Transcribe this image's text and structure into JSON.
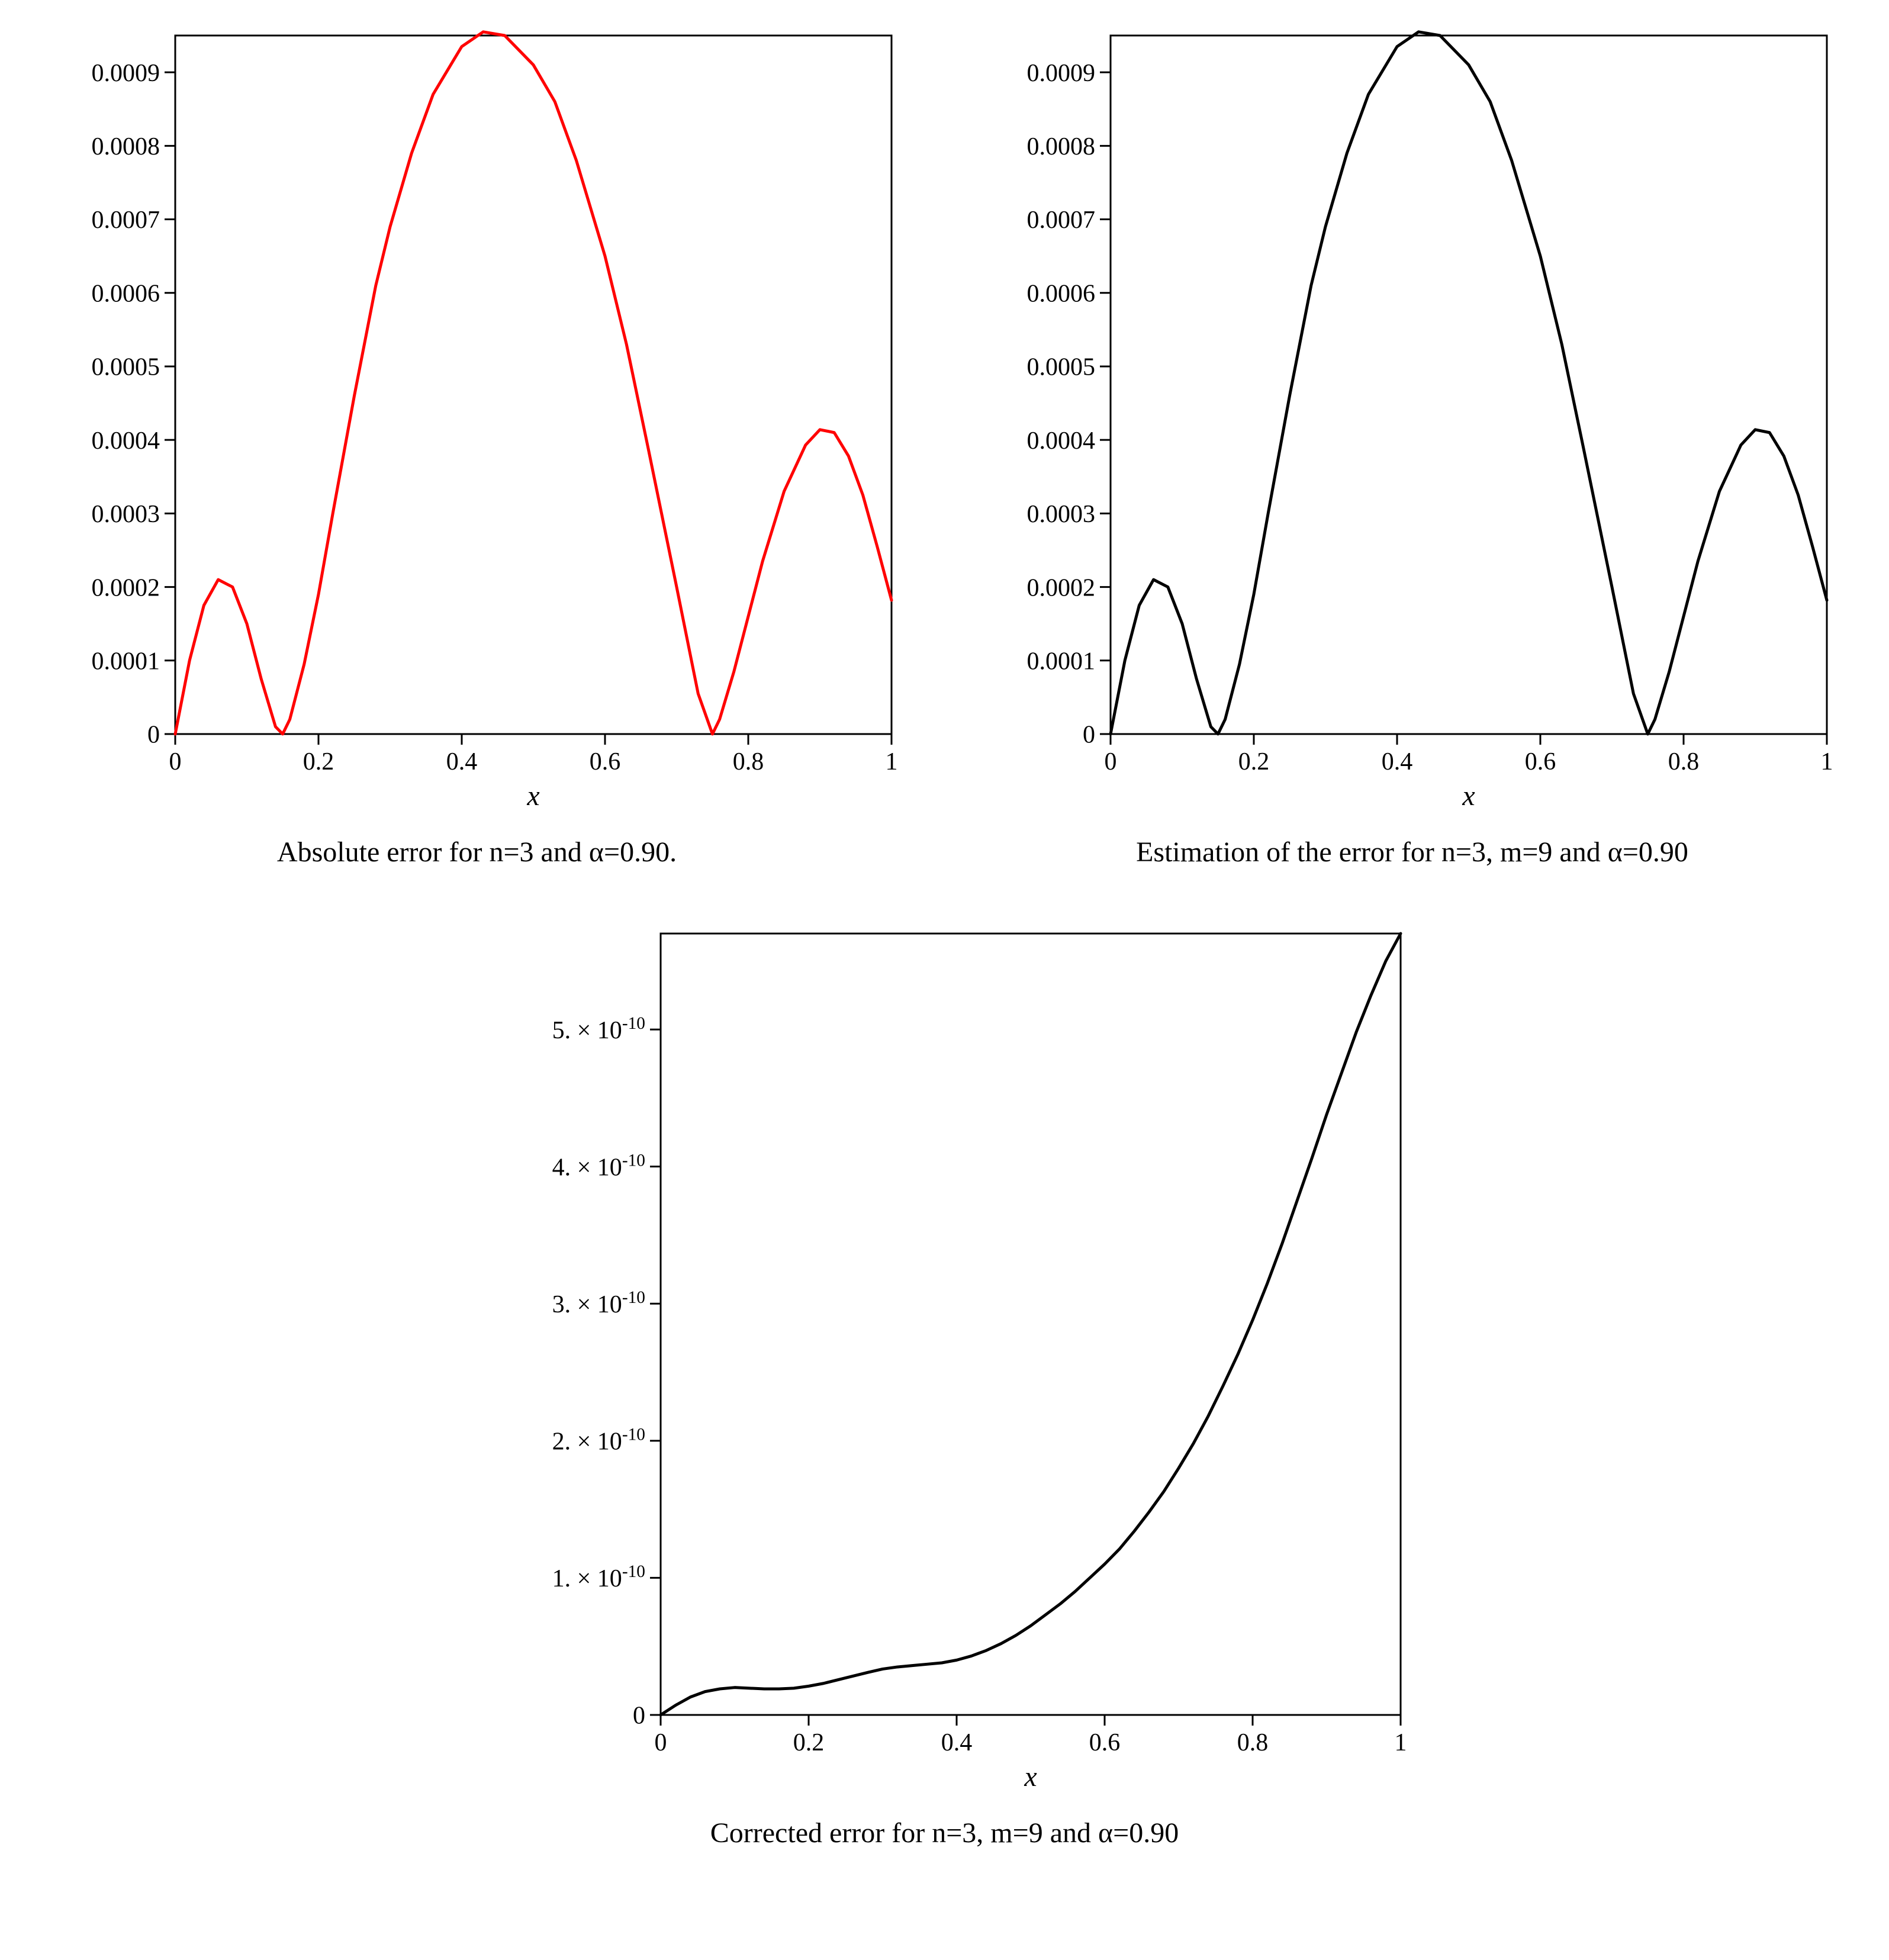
{
  "chart1": {
    "type": "line",
    "caption": "Absolute error for n=3 and α=0.90.",
    "xlabel": "x",
    "xlim": [
      0,
      1
    ],
    "ylim": [
      0,
      0.00095
    ],
    "xtick_step": 0.2,
    "yticks": [
      0,
      0.0001,
      0.0002,
      0.0003,
      0.0004,
      0.0005,
      0.0006,
      0.0007,
      0.0008,
      0.0009
    ],
    "line_color": "#ff0000",
    "line_width": 5,
    "axis_color": "#000000",
    "background_color": "#ffffff",
    "label_fontsize": 48,
    "tick_fontsize": 42,
    "points": [
      [
        0.0,
        0.0
      ],
      [
        0.02,
        0.0001
      ],
      [
        0.04,
        0.000175
      ],
      [
        0.06,
        0.00021
      ],
      [
        0.08,
        0.0002
      ],
      [
        0.1,
        0.00015
      ],
      [
        0.12,
        7.5e-05
      ],
      [
        0.14,
        1e-05
      ],
      [
        0.15,
        0.0
      ],
      [
        0.16,
        2e-05
      ],
      [
        0.18,
        9.5e-05
      ],
      [
        0.2,
        0.00019
      ],
      [
        0.22,
        0.0003
      ],
      [
        0.25,
        0.00046
      ],
      [
        0.28,
        0.00061
      ],
      [
        0.3,
        0.00069
      ],
      [
        0.33,
        0.00079
      ],
      [
        0.36,
        0.00087
      ],
      [
        0.4,
        0.000935
      ],
      [
        0.43,
        0.000955
      ],
      [
        0.46,
        0.00095
      ],
      [
        0.5,
        0.00091
      ],
      [
        0.53,
        0.00086
      ],
      [
        0.56,
        0.00078
      ],
      [
        0.6,
        0.00065
      ],
      [
        0.63,
        0.00053
      ],
      [
        0.66,
        0.00039
      ],
      [
        0.7,
        0.0002
      ],
      [
        0.73,
        5.5e-05
      ],
      [
        0.75,
        0.0
      ],
      [
        0.76,
        2e-05
      ],
      [
        0.78,
        8.5e-05
      ],
      [
        0.8,
        0.00016
      ],
      [
        0.82,
        0.000235
      ],
      [
        0.85,
        0.00033
      ],
      [
        0.88,
        0.000393
      ],
      [
        0.9,
        0.000414
      ],
      [
        0.92,
        0.00041
      ],
      [
        0.94,
        0.000378
      ],
      [
        0.96,
        0.000325
      ],
      [
        0.98,
        0.000255
      ],
      [
        1.0,
        0.000182
      ]
    ]
  },
  "chart2": {
    "type": "line",
    "caption": "Estimation of the error for n=3, m=9 and α=0.90",
    "xlabel": "x",
    "xlim": [
      0,
      1
    ],
    "ylim": [
      0,
      0.00095
    ],
    "xtick_step": 0.2,
    "yticks": [
      0,
      0.0001,
      0.0002,
      0.0003,
      0.0004,
      0.0005,
      0.0006,
      0.0007,
      0.0008,
      0.0009
    ],
    "line_color": "#000000",
    "line_width": 5,
    "axis_color": "#000000",
    "background_color": "#ffffff",
    "label_fontsize": 48,
    "tick_fontsize": 42,
    "points": [
      [
        0.0,
        0.0
      ],
      [
        0.02,
        0.0001
      ],
      [
        0.04,
        0.000175
      ],
      [
        0.06,
        0.00021
      ],
      [
        0.08,
        0.0002
      ],
      [
        0.1,
        0.00015
      ],
      [
        0.12,
        7.5e-05
      ],
      [
        0.14,
        1e-05
      ],
      [
        0.15,
        0.0
      ],
      [
        0.16,
        2e-05
      ],
      [
        0.18,
        9.5e-05
      ],
      [
        0.2,
        0.00019
      ],
      [
        0.22,
        0.0003
      ],
      [
        0.25,
        0.00046
      ],
      [
        0.28,
        0.00061
      ],
      [
        0.3,
        0.00069
      ],
      [
        0.33,
        0.00079
      ],
      [
        0.36,
        0.00087
      ],
      [
        0.4,
        0.000935
      ],
      [
        0.43,
        0.000955
      ],
      [
        0.46,
        0.00095
      ],
      [
        0.5,
        0.00091
      ],
      [
        0.53,
        0.00086
      ],
      [
        0.56,
        0.00078
      ],
      [
        0.6,
        0.00065
      ],
      [
        0.63,
        0.00053
      ],
      [
        0.66,
        0.00039
      ],
      [
        0.7,
        0.0002
      ],
      [
        0.73,
        5.5e-05
      ],
      [
        0.75,
        0.0
      ],
      [
        0.76,
        2e-05
      ],
      [
        0.78,
        8.5e-05
      ],
      [
        0.8,
        0.00016
      ],
      [
        0.82,
        0.000235
      ],
      [
        0.85,
        0.00033
      ],
      [
        0.88,
        0.000393
      ],
      [
        0.9,
        0.000414
      ],
      [
        0.92,
        0.00041
      ],
      [
        0.94,
        0.000378
      ],
      [
        0.96,
        0.000325
      ],
      [
        0.98,
        0.000255
      ],
      [
        1.0,
        0.000182
      ]
    ]
  },
  "chart3": {
    "type": "line",
    "caption": "Corrected error for n=3, m=9 and α=0.90",
    "xlabel": "x",
    "xlim": [
      0,
      1
    ],
    "ylim": [
      0,
      5.7e-10
    ],
    "xtick_step": 0.2,
    "yticks_sci": [
      {
        "val": 0,
        "label": "0"
      },
      {
        "val": 1e-10,
        "label_mantissa": "1.",
        "label_exp": "-10"
      },
      {
        "val": 2e-10,
        "label_mantissa": "2.",
        "label_exp": "-10"
      },
      {
        "val": 3e-10,
        "label_mantissa": "3.",
        "label_exp": "-10"
      },
      {
        "val": 4e-10,
        "label_mantissa": "4.",
        "label_exp": "-10"
      },
      {
        "val": 5e-10,
        "label_mantissa": "5.",
        "label_exp": "-10"
      }
    ],
    "line_color": "#000000",
    "line_width": 5,
    "axis_color": "#000000",
    "background_color": "#ffffff",
    "label_fontsize": 48,
    "tick_fontsize": 42,
    "points": [
      [
        0.0,
        0.0
      ],
      [
        0.02,
        7e-12
      ],
      [
        0.04,
        1.3e-11
      ],
      [
        0.06,
        1.7e-11
      ],
      [
        0.08,
        1.9e-11
      ],
      [
        0.1,
        2e-11
      ],
      [
        0.12,
        1.95e-11
      ],
      [
        0.14,
        1.9e-11
      ],
      [
        0.16,
        1.9e-11
      ],
      [
        0.18,
        1.95e-11
      ],
      [
        0.2,
        2.1e-11
      ],
      [
        0.22,
        2.3e-11
      ],
      [
        0.25,
        2.7e-11
      ],
      [
        0.28,
        3.1e-11
      ],
      [
        0.3,
        3.35e-11
      ],
      [
        0.32,
        3.5e-11
      ],
      [
        0.34,
        3.6e-11
      ],
      [
        0.36,
        3.7e-11
      ],
      [
        0.38,
        3.8e-11
      ],
      [
        0.4,
        4e-11
      ],
      [
        0.42,
        4.3e-11
      ],
      [
        0.44,
        4.7e-11
      ],
      [
        0.46,
        5.2e-11
      ],
      [
        0.48,
        5.8e-11
      ],
      [
        0.5,
        6.5e-11
      ],
      [
        0.52,
        7.3e-11
      ],
      [
        0.54,
        8.1e-11
      ],
      [
        0.56,
        9e-11
      ],
      [
        0.58,
        1e-10
      ],
      [
        0.6,
        1.1e-10
      ],
      [
        0.62,
        1.21e-10
      ],
      [
        0.64,
        1.34e-10
      ],
      [
        0.66,
        1.48e-10
      ],
      [
        0.68,
        1.63e-10
      ],
      [
        0.7,
        1.8e-10
      ],
      [
        0.72,
        1.98e-10
      ],
      [
        0.74,
        2.18e-10
      ],
      [
        0.76,
        2.4e-10
      ],
      [
        0.78,
        2.63e-10
      ],
      [
        0.8,
        2.88e-10
      ],
      [
        0.82,
        3.15e-10
      ],
      [
        0.84,
        3.44e-10
      ],
      [
        0.86,
        3.75e-10
      ],
      [
        0.88,
        4.06e-10
      ],
      [
        0.9,
        4.38e-10
      ],
      [
        0.92,
        4.68e-10
      ],
      [
        0.94,
        4.98e-10
      ],
      [
        0.96,
        5.25e-10
      ],
      [
        0.98,
        5.5e-10
      ],
      [
        1.0,
        5.7e-10
      ]
    ]
  }
}
